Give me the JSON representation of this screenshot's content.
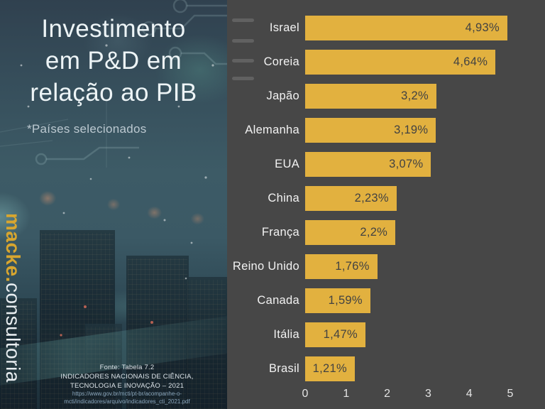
{
  "left_panel": {
    "title_lines": [
      "Investimento",
      "em P&D em",
      "relação ao PIB"
    ],
    "subtitle": "*Países selecionados",
    "logo": {
      "brand": "macke.",
      "suffix": "consultoria",
      "brand_color": "#d8a62f"
    },
    "source": {
      "line1": "Fonte: Tabela 7.2",
      "line2": "INDICADORES NACIONAIS DE CIÊNCIA,",
      "line3": "TECNOLOGIA E INOVAÇÃO – 2021",
      "url_line1": "https://www.gov.br/mcti/pt-br/acompanhe-o-",
      "url_line2": "mcti/indicadores/arquivo/indicadores_cti_2021.pdf"
    }
  },
  "chart_data": {
    "type": "bar",
    "orientation": "horizontal",
    "title": "Investimento em P&D em relação ao PIB (*países selecionados)",
    "categories": [
      "Israel",
      "Coreia",
      "Japão",
      "Alemanha",
      "EUA",
      "China",
      "França",
      "Reino Unido",
      "Canada",
      "Itália",
      "Brasil"
    ],
    "values": [
      4.93,
      4.64,
      3.2,
      3.19,
      3.07,
      2.23,
      2.2,
      1.76,
      1.59,
      1.47,
      1.21
    ],
    "value_labels": [
      "4,93%",
      "4,64%",
      "3,2%",
      "3,19%",
      "3,07%",
      "2,23%",
      "2,2%",
      "1,76%",
      "1,59%",
      "1,47%",
      "1,21%"
    ],
    "xlabel": "",
    "ylabel": "",
    "xlim": [
      0,
      5
    ],
    "x_ticks": [
      "0",
      "1",
      "2",
      "3",
      "4",
      "5"
    ],
    "grid": false,
    "legend": false,
    "value_label_position": "inside-end",
    "bar_color": "#e2b13f",
    "value_text_color": "#424242",
    "category_label_color": "#f2f2f2",
    "tick_label_color": "#e3e3e3",
    "background_color": "#474747"
  }
}
